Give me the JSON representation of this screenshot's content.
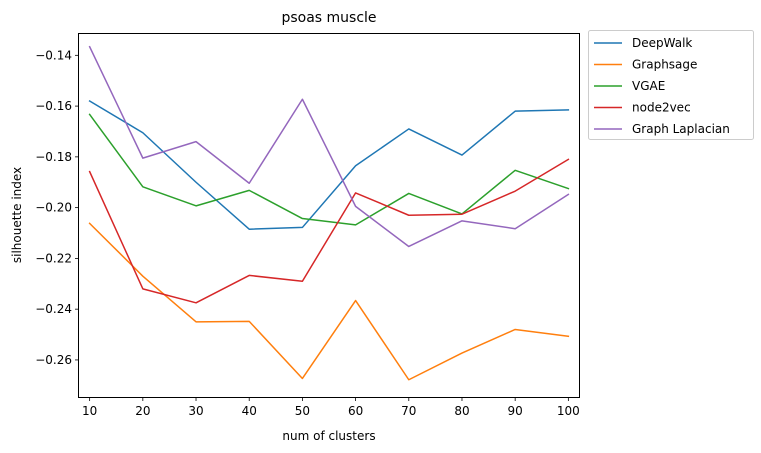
{
  "chart_data": {
    "type": "line",
    "title": "psoas muscle",
    "xlabel": "num of clusters",
    "ylabel": "silhouette index",
    "x": [
      10,
      20,
      30,
      40,
      50,
      60,
      70,
      80,
      90,
      100
    ],
    "xticks": [
      "10",
      "20",
      "30",
      "40",
      "50",
      "60",
      "70",
      "80",
      "90",
      "100"
    ],
    "yticks": [
      -0.26,
      -0.24,
      -0.22,
      -0.2,
      -0.18,
      -0.16,
      -0.14
    ],
    "ytick_labels": [
      "−0.26",
      "−0.24",
      "−0.22",
      "−0.20",
      "−0.18",
      "−0.16",
      "−0.14"
    ],
    "xlim": [
      8,
      102
    ],
    "ylim": [
      -0.2746,
      -0.1316
    ],
    "grid": false,
    "legend_position": "outside upper right",
    "series": [
      {
        "name": "DeepWalk",
        "color": "#1f77b4",
        "values": [
          -0.158,
          -0.1705,
          -0.19,
          -0.2085,
          -0.2078,
          -0.1835,
          -0.169,
          -0.1793,
          -0.162,
          -0.1615
        ]
      },
      {
        "name": "Graphsage",
        "color": "#ff7f0e",
        "values": [
          -0.2062,
          -0.227,
          -0.245,
          -0.2448,
          -0.2673,
          -0.2366,
          -0.2678,
          -0.2573,
          -0.248,
          -0.2507
        ]
      },
      {
        "name": "VGAE",
        "color": "#2ca02c",
        "values": [
          -0.1633,
          -0.1918,
          -0.1993,
          -0.1932,
          -0.2043,
          -0.2068,
          -0.1944,
          -0.2025,
          -0.1853,
          -0.1925
        ]
      },
      {
        "name": "node2vec",
        "color": "#d62728",
        "values": [
          -0.1858,
          -0.232,
          -0.2375,
          -0.2267,
          -0.229,
          -0.1942,
          -0.203,
          -0.2026,
          -0.1935,
          -0.181
        ]
      },
      {
        "name": "Graph Laplacian",
        "color": "#9467bd",
        "values": [
          -0.1366,
          -0.1805,
          -0.174,
          -0.1904,
          -0.1573,
          -0.1995,
          -0.2153,
          -0.2052,
          -0.2083,
          -0.1948
        ]
      }
    ]
  }
}
